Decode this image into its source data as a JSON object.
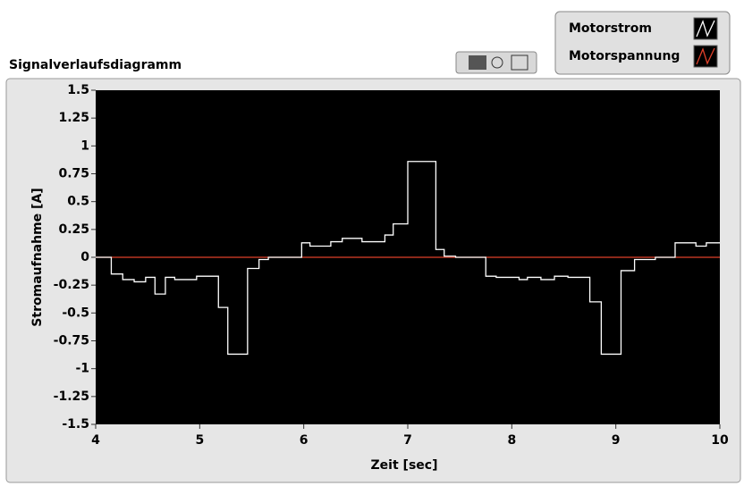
{
  "chart_data": {
    "type": "line",
    "title": "Signalverlaufsdiagramm",
    "xlabel": "Zeit [sec]",
    "ylabel": "Stromaufnahme [A]",
    "xlim": [
      4,
      10
    ],
    "ylim": [
      -1.5,
      1.5
    ],
    "xticks": [
      4,
      5,
      6,
      7,
      8,
      9,
      10
    ],
    "yticks": [
      1.5,
      1.25,
      1,
      0.75,
      0.5,
      0.25,
      0,
      -0.25,
      -0.5,
      -0.75,
      -1,
      -1.25,
      -1.5
    ],
    "step": "post",
    "background": "#000000",
    "series": [
      {
        "name": "Motorstrom",
        "color": "#ffffff",
        "x": [
          4,
          4.15,
          4.26,
          4.37,
          4.48,
          4.57,
          4.67,
          4.76,
          4.97,
          5.18,
          5.27,
          5.46,
          5.57,
          5.66,
          5.98,
          6.06,
          6.26,
          6.37,
          6.56,
          6.78,
          6.86,
          7.0,
          7.27,
          7.35,
          7.46,
          7.75,
          7.85,
          8.07,
          8.15,
          8.28,
          8.41,
          8.54,
          8.75,
          8.86,
          9.05,
          9.18,
          9.38,
          9.57,
          9.77,
          9.87,
          10
        ],
        "values": [
          0,
          -0.15,
          -0.2,
          -0.22,
          -0.18,
          -0.33,
          -0.18,
          -0.2,
          -0.17,
          -0.45,
          -0.87,
          -0.1,
          -0.02,
          0,
          0.13,
          0.1,
          0.14,
          0.17,
          0.14,
          0.2,
          0.3,
          0.86,
          0.07,
          0.01,
          0,
          -0.17,
          -0.18,
          -0.2,
          -0.18,
          -0.2,
          -0.17,
          -0.18,
          -0.4,
          -0.87,
          -0.12,
          -0.02,
          0,
          0.13,
          0.1,
          0.13,
          0.13
        ]
      },
      {
        "name": "Motorspannung",
        "color": "#e0402a",
        "x": [
          4,
          10
        ],
        "values": [
          0,
          0
        ]
      }
    ]
  }
}
